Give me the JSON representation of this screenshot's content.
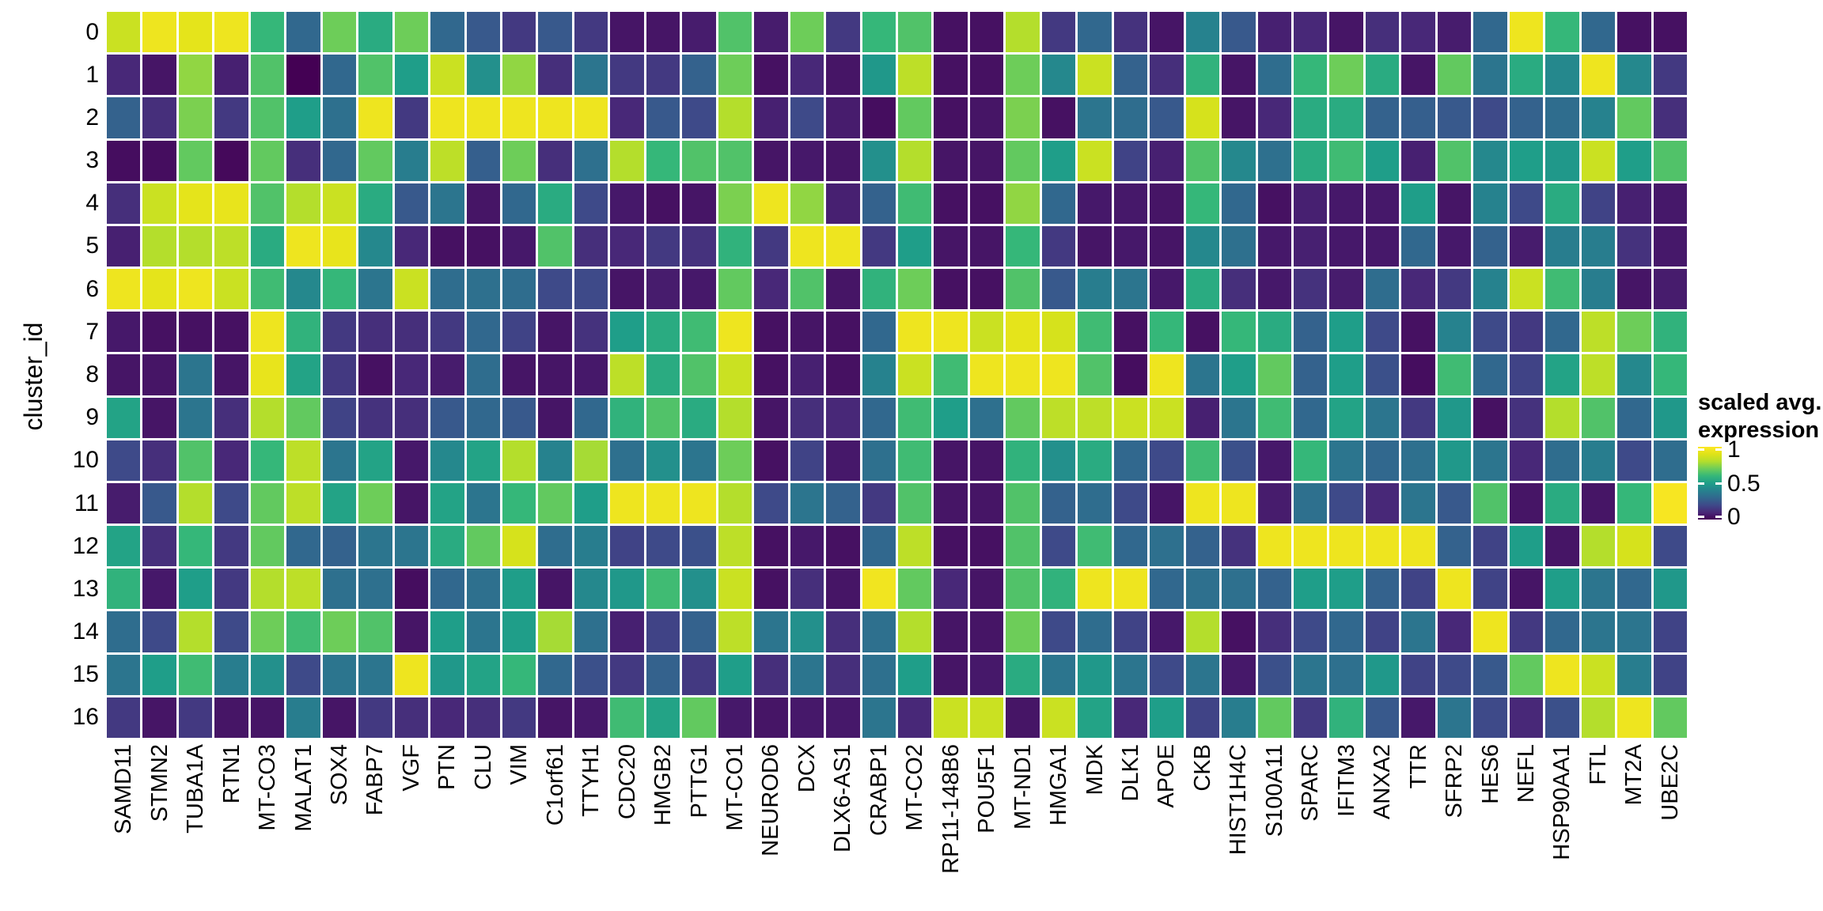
{
  "chart_data": {
    "type": "heatmap",
    "title": "",
    "xlabel": "",
    "ylabel": "cluster_id",
    "colormap": "viridis",
    "value_range": [
      0,
      1
    ],
    "grid_gap_color": "#ffffff",
    "rows": [
      "0",
      "1",
      "2",
      "3",
      "4",
      "5",
      "6",
      "7",
      "8",
      "9",
      "10",
      "11",
      "12",
      "13",
      "14",
      "15",
      "16"
    ],
    "columns": [
      "SAMD11",
      "STMN2",
      "TUBA1A",
      "RTN1",
      "MT-CO3",
      "MALAT1",
      "SOX4",
      "FABP7",
      "VGF",
      "PTN",
      "CLU",
      "VIM",
      "C1orf61",
      "TTYH1",
      "CDC20",
      "HMGB2",
      "PTTG1",
      "MT-CO1",
      "NEUROD6",
      "DCX",
      "DLX6-AS1",
      "CRABP1",
      "MT-CO2",
      "RP11-148B6",
      "POU5F1",
      "MT-ND1",
      "HMGA1",
      "MDK",
      "DLK1",
      "APOE",
      "CKB",
      "HIST1H4C",
      "S100A11",
      "SPARC",
      "IFITM3",
      "ANXA2",
      "TTR",
      "SFRP2",
      "HES6",
      "NEFL",
      "HSP90AA1",
      "FTL",
      "MT2A",
      "UBE2C"
    ],
    "values": [
      [
        0.85,
        0.95,
        0.92,
        0.95,
        0.6,
        0.3,
        0.7,
        0.55,
        0.7,
        0.3,
        0.25,
        0.15,
        0.25,
        0.15,
        0.05,
        0.05,
        0.07,
        0.65,
        0.07,
        0.7,
        0.15,
        0.6,
        0.65,
        0.04,
        0.04,
        0.8,
        0.15,
        0.3,
        0.13,
        0.05,
        0.4,
        0.25,
        0.08,
        0.1,
        0.05,
        0.12,
        0.1,
        0.07,
        0.3,
        0.95,
        0.6,
        0.3,
        0.04,
        0.04
      ],
      [
        0.1,
        0.05,
        0.75,
        0.08,
        0.65,
        0.0,
        0.3,
        0.65,
        0.5,
        0.85,
        0.45,
        0.75,
        0.12,
        0.35,
        0.15,
        0.15,
        0.28,
        0.7,
        0.04,
        0.1,
        0.05,
        0.48,
        0.82,
        0.04,
        0.04,
        0.7,
        0.42,
        0.85,
        0.28,
        0.12,
        0.58,
        0.05,
        0.32,
        0.6,
        0.7,
        0.55,
        0.05,
        0.68,
        0.35,
        0.55,
        0.42,
        0.95,
        0.42,
        0.15
      ],
      [
        0.28,
        0.12,
        0.72,
        0.15,
        0.65,
        0.5,
        0.33,
        0.95,
        0.15,
        0.95,
        0.95,
        0.95,
        0.95,
        0.95,
        0.1,
        0.25,
        0.2,
        0.8,
        0.08,
        0.2,
        0.07,
        0.03,
        0.68,
        0.04,
        0.05,
        0.72,
        0.04,
        0.35,
        0.32,
        0.25,
        0.88,
        0.05,
        0.1,
        0.55,
        0.55,
        0.28,
        0.27,
        0.25,
        0.2,
        0.28,
        0.32,
        0.4,
        0.68,
        0.12
      ],
      [
        0.03,
        0.03,
        0.68,
        0.02,
        0.68,
        0.12,
        0.3,
        0.68,
        0.38,
        0.82,
        0.27,
        0.7,
        0.12,
        0.33,
        0.8,
        0.6,
        0.65,
        0.65,
        0.05,
        0.06,
        0.05,
        0.45,
        0.8,
        0.05,
        0.05,
        0.68,
        0.5,
        0.85,
        0.18,
        0.08,
        0.65,
        0.42,
        0.33,
        0.55,
        0.62,
        0.5,
        0.08,
        0.65,
        0.42,
        0.5,
        0.48,
        0.85,
        0.5,
        0.65
      ],
      [
        0.12,
        0.85,
        0.92,
        0.93,
        0.65,
        0.8,
        0.85,
        0.55,
        0.25,
        0.35,
        0.05,
        0.3,
        0.55,
        0.2,
        0.06,
        0.04,
        0.05,
        0.72,
        0.95,
        0.75,
        0.08,
        0.28,
        0.62,
        0.04,
        0.04,
        0.75,
        0.3,
        0.06,
        0.06,
        0.05,
        0.6,
        0.3,
        0.04,
        0.08,
        0.06,
        0.06,
        0.5,
        0.05,
        0.4,
        0.2,
        0.55,
        0.18,
        0.08,
        0.06
      ],
      [
        0.08,
        0.8,
        0.8,
        0.82,
        0.55,
        0.95,
        0.93,
        0.42,
        0.1,
        0.04,
        0.04,
        0.06,
        0.65,
        0.12,
        0.1,
        0.15,
        0.13,
        0.58,
        0.15,
        0.95,
        0.95,
        0.15,
        0.5,
        0.05,
        0.05,
        0.6,
        0.15,
        0.05,
        0.06,
        0.05,
        0.42,
        0.33,
        0.06,
        0.08,
        0.06,
        0.06,
        0.3,
        0.06,
        0.28,
        0.07,
        0.38,
        0.38,
        0.13,
        0.06
      ],
      [
        0.95,
        0.92,
        0.95,
        0.85,
        0.62,
        0.42,
        0.6,
        0.35,
        0.85,
        0.32,
        0.33,
        0.32,
        0.2,
        0.2,
        0.05,
        0.07,
        0.06,
        0.68,
        0.1,
        0.65,
        0.05,
        0.58,
        0.7,
        0.04,
        0.04,
        0.65,
        0.25,
        0.38,
        0.35,
        0.06,
        0.55,
        0.12,
        0.06,
        0.13,
        0.07,
        0.32,
        0.1,
        0.15,
        0.4,
        0.85,
        0.62,
        0.38,
        0.05,
        0.07
      ],
      [
        0.06,
        0.04,
        0.04,
        0.04,
        0.95,
        0.58,
        0.15,
        0.12,
        0.12,
        0.15,
        0.3,
        0.18,
        0.05,
        0.13,
        0.5,
        0.55,
        0.62,
        0.95,
        0.04,
        0.05,
        0.04,
        0.3,
        0.95,
        0.95,
        0.85,
        0.92,
        0.88,
        0.62,
        0.04,
        0.6,
        0.04,
        0.6,
        0.55,
        0.28,
        0.5,
        0.2,
        0.04,
        0.4,
        0.2,
        0.15,
        0.3,
        0.82,
        0.7,
        0.58
      ],
      [
        0.05,
        0.05,
        0.35,
        0.05,
        0.93,
        0.52,
        0.15,
        0.04,
        0.1,
        0.07,
        0.32,
        0.05,
        0.05,
        0.06,
        0.82,
        0.55,
        0.65,
        0.85,
        0.04,
        0.08,
        0.04,
        0.4,
        0.85,
        0.62,
        0.95,
        0.95,
        0.95,
        0.65,
        0.03,
        0.95,
        0.35,
        0.5,
        0.68,
        0.28,
        0.5,
        0.22,
        0.03,
        0.62,
        0.3,
        0.18,
        0.52,
        0.82,
        0.42,
        0.6
      ],
      [
        0.52,
        0.05,
        0.35,
        0.12,
        0.8,
        0.68,
        0.18,
        0.13,
        0.12,
        0.25,
        0.3,
        0.25,
        0.05,
        0.3,
        0.58,
        0.65,
        0.55,
        0.8,
        0.05,
        0.12,
        0.1,
        0.3,
        0.62,
        0.5,
        0.33,
        0.68,
        0.82,
        0.82,
        0.85,
        0.85,
        0.08,
        0.35,
        0.62,
        0.3,
        0.52,
        0.35,
        0.15,
        0.48,
        0.04,
        0.13,
        0.8,
        0.65,
        0.3,
        0.48
      ],
      [
        0.2,
        0.12,
        0.65,
        0.1,
        0.6,
        0.82,
        0.35,
        0.52,
        0.06,
        0.42,
        0.52,
        0.8,
        0.4,
        0.78,
        0.33,
        0.45,
        0.35,
        0.7,
        0.04,
        0.18,
        0.06,
        0.33,
        0.62,
        0.05,
        0.05,
        0.58,
        0.45,
        0.55,
        0.3,
        0.2,
        0.62,
        0.22,
        0.06,
        0.6,
        0.35,
        0.3,
        0.33,
        0.48,
        0.35,
        0.1,
        0.32,
        0.38,
        0.2,
        0.32
      ],
      [
        0.07,
        0.25,
        0.8,
        0.2,
        0.68,
        0.82,
        0.52,
        0.7,
        0.05,
        0.52,
        0.35,
        0.6,
        0.68,
        0.5,
        0.95,
        0.95,
        0.95,
        0.8,
        0.2,
        0.35,
        0.28,
        0.15,
        0.65,
        0.05,
        0.05,
        0.65,
        0.28,
        0.32,
        0.2,
        0.05,
        0.95,
        0.95,
        0.07,
        0.33,
        0.2,
        0.1,
        0.35,
        0.25,
        0.65,
        0.05,
        0.55,
        0.05,
        0.6,
        0.98
      ],
      [
        0.52,
        0.12,
        0.6,
        0.15,
        0.68,
        0.3,
        0.28,
        0.35,
        0.35,
        0.55,
        0.68,
        0.88,
        0.32,
        0.38,
        0.18,
        0.2,
        0.22,
        0.82,
        0.04,
        0.06,
        0.04,
        0.3,
        0.82,
        0.04,
        0.04,
        0.65,
        0.2,
        0.62,
        0.3,
        0.33,
        0.28,
        0.13,
        0.95,
        0.95,
        0.95,
        0.95,
        0.95,
        0.28,
        0.18,
        0.5,
        0.05,
        0.8,
        0.88,
        0.2
      ],
      [
        0.58,
        0.06,
        0.5,
        0.15,
        0.8,
        0.82,
        0.33,
        0.33,
        0.03,
        0.3,
        0.33,
        0.5,
        0.05,
        0.42,
        0.48,
        0.62,
        0.45,
        0.85,
        0.04,
        0.12,
        0.05,
        0.96,
        0.68,
        0.1,
        0.05,
        0.65,
        0.58,
        0.95,
        0.95,
        0.3,
        0.33,
        0.33,
        0.28,
        0.5,
        0.5,
        0.28,
        0.18,
        0.95,
        0.18,
        0.05,
        0.5,
        0.35,
        0.3,
        0.48
      ],
      [
        0.32,
        0.2,
        0.8,
        0.2,
        0.7,
        0.62,
        0.7,
        0.65,
        0.05,
        0.5,
        0.35,
        0.5,
        0.78,
        0.33,
        0.08,
        0.18,
        0.28,
        0.82,
        0.35,
        0.45,
        0.12,
        0.33,
        0.8,
        0.05,
        0.05,
        0.7,
        0.2,
        0.32,
        0.18,
        0.06,
        0.8,
        0.04,
        0.12,
        0.2,
        0.3,
        0.18,
        0.35,
        0.1,
        0.95,
        0.15,
        0.3,
        0.35,
        0.35,
        0.18
      ],
      [
        0.35,
        0.5,
        0.62,
        0.38,
        0.45,
        0.2,
        0.35,
        0.35,
        0.95,
        0.48,
        0.52,
        0.6,
        0.3,
        0.22,
        0.15,
        0.28,
        0.15,
        0.5,
        0.12,
        0.35,
        0.12,
        0.33,
        0.5,
        0.05,
        0.06,
        0.55,
        0.35,
        0.48,
        0.35,
        0.2,
        0.35,
        0.06,
        0.22,
        0.35,
        0.33,
        0.48,
        0.18,
        0.2,
        0.25,
        0.68,
        0.95,
        0.85,
        0.38,
        0.18
      ],
      [
        0.15,
        0.05,
        0.15,
        0.05,
        0.05,
        0.38,
        0.05,
        0.15,
        0.12,
        0.1,
        0.12,
        0.15,
        0.05,
        0.06,
        0.62,
        0.52,
        0.68,
        0.06,
        0.05,
        0.06,
        0.06,
        0.35,
        0.1,
        0.85,
        0.85,
        0.05,
        0.85,
        0.52,
        0.1,
        0.5,
        0.18,
        0.38,
        0.68,
        0.15,
        0.58,
        0.25,
        0.06,
        0.35,
        0.2,
        0.1,
        0.22,
        0.8,
        0.95,
        0.68
      ]
    ],
    "legend": {
      "title_line1": "scaled avg.",
      "title_line2": "expression",
      "ticks": [
        "1",
        "0.5",
        "0"
      ],
      "tick_values": [
        1,
        0.5,
        0
      ],
      "colors": {
        "min": "#440154",
        "mid": "#21918c",
        "max": "#fde725"
      }
    }
  }
}
